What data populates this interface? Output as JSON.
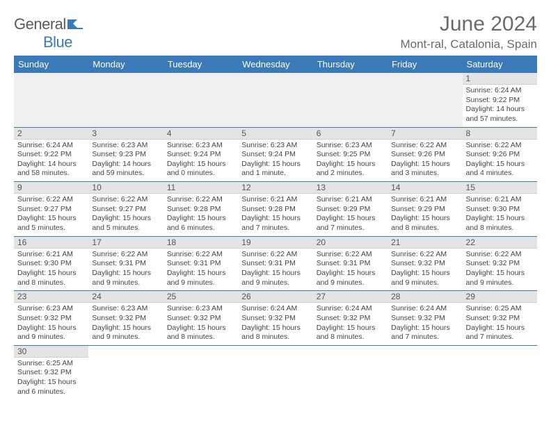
{
  "brand": {
    "part1": "General",
    "part2": "Blue"
  },
  "title": "June 2024",
  "location": "Mont-ral, Catalonia, Spain",
  "colors": {
    "header_bg": "#3a7ab8",
    "header_text": "#ffffff",
    "daynum_bg": "#e4e4e4",
    "row_border": "#3a7ab8",
    "body_text": "#444444",
    "title_text": "#6b6b6b"
  },
  "typography": {
    "month_title_size": 30,
    "location_size": 17,
    "weekday_size": 13,
    "daynum_size": 12,
    "body_size": 10.5
  },
  "weekdays": [
    "Sunday",
    "Monday",
    "Tuesday",
    "Wednesday",
    "Thursday",
    "Friday",
    "Saturday"
  ],
  "weeks": [
    [
      null,
      null,
      null,
      null,
      null,
      null,
      {
        "n": "1",
        "sr": "Sunrise: 6:24 AM",
        "ss": "Sunset: 9:22 PM",
        "dl": "Daylight: 14 hours and 57 minutes."
      }
    ],
    [
      {
        "n": "2",
        "sr": "Sunrise: 6:24 AM",
        "ss": "Sunset: 9:22 PM",
        "dl": "Daylight: 14 hours and 58 minutes."
      },
      {
        "n": "3",
        "sr": "Sunrise: 6:23 AM",
        "ss": "Sunset: 9:23 PM",
        "dl": "Daylight: 14 hours and 59 minutes."
      },
      {
        "n": "4",
        "sr": "Sunrise: 6:23 AM",
        "ss": "Sunset: 9:24 PM",
        "dl": "Daylight: 15 hours and 0 minutes."
      },
      {
        "n": "5",
        "sr": "Sunrise: 6:23 AM",
        "ss": "Sunset: 9:24 PM",
        "dl": "Daylight: 15 hours and 1 minute."
      },
      {
        "n": "6",
        "sr": "Sunrise: 6:23 AM",
        "ss": "Sunset: 9:25 PM",
        "dl": "Daylight: 15 hours and 2 minutes."
      },
      {
        "n": "7",
        "sr": "Sunrise: 6:22 AM",
        "ss": "Sunset: 9:26 PM",
        "dl": "Daylight: 15 hours and 3 minutes."
      },
      {
        "n": "8",
        "sr": "Sunrise: 6:22 AM",
        "ss": "Sunset: 9:26 PM",
        "dl": "Daylight: 15 hours and 4 minutes."
      }
    ],
    [
      {
        "n": "9",
        "sr": "Sunrise: 6:22 AM",
        "ss": "Sunset: 9:27 PM",
        "dl": "Daylight: 15 hours and 5 minutes."
      },
      {
        "n": "10",
        "sr": "Sunrise: 6:22 AM",
        "ss": "Sunset: 9:27 PM",
        "dl": "Daylight: 15 hours and 5 minutes."
      },
      {
        "n": "11",
        "sr": "Sunrise: 6:22 AM",
        "ss": "Sunset: 9:28 PM",
        "dl": "Daylight: 15 hours and 6 minutes."
      },
      {
        "n": "12",
        "sr": "Sunrise: 6:21 AM",
        "ss": "Sunset: 9:28 PM",
        "dl": "Daylight: 15 hours and 7 minutes."
      },
      {
        "n": "13",
        "sr": "Sunrise: 6:21 AM",
        "ss": "Sunset: 9:29 PM",
        "dl": "Daylight: 15 hours and 7 minutes."
      },
      {
        "n": "14",
        "sr": "Sunrise: 6:21 AM",
        "ss": "Sunset: 9:29 PM",
        "dl": "Daylight: 15 hours and 8 minutes."
      },
      {
        "n": "15",
        "sr": "Sunrise: 6:21 AM",
        "ss": "Sunset: 9:30 PM",
        "dl": "Daylight: 15 hours and 8 minutes."
      }
    ],
    [
      {
        "n": "16",
        "sr": "Sunrise: 6:21 AM",
        "ss": "Sunset: 9:30 PM",
        "dl": "Daylight: 15 hours and 8 minutes."
      },
      {
        "n": "17",
        "sr": "Sunrise: 6:22 AM",
        "ss": "Sunset: 9:31 PM",
        "dl": "Daylight: 15 hours and 9 minutes."
      },
      {
        "n": "18",
        "sr": "Sunrise: 6:22 AM",
        "ss": "Sunset: 9:31 PM",
        "dl": "Daylight: 15 hours and 9 minutes."
      },
      {
        "n": "19",
        "sr": "Sunrise: 6:22 AM",
        "ss": "Sunset: 9:31 PM",
        "dl": "Daylight: 15 hours and 9 minutes."
      },
      {
        "n": "20",
        "sr": "Sunrise: 6:22 AM",
        "ss": "Sunset: 9:31 PM",
        "dl": "Daylight: 15 hours and 9 minutes."
      },
      {
        "n": "21",
        "sr": "Sunrise: 6:22 AM",
        "ss": "Sunset: 9:32 PM",
        "dl": "Daylight: 15 hours and 9 minutes."
      },
      {
        "n": "22",
        "sr": "Sunrise: 6:22 AM",
        "ss": "Sunset: 9:32 PM",
        "dl": "Daylight: 15 hours and 9 minutes."
      }
    ],
    [
      {
        "n": "23",
        "sr": "Sunrise: 6:23 AM",
        "ss": "Sunset: 9:32 PM",
        "dl": "Daylight: 15 hours and 9 minutes."
      },
      {
        "n": "24",
        "sr": "Sunrise: 6:23 AM",
        "ss": "Sunset: 9:32 PM",
        "dl": "Daylight: 15 hours and 9 minutes."
      },
      {
        "n": "25",
        "sr": "Sunrise: 6:23 AM",
        "ss": "Sunset: 9:32 PM",
        "dl": "Daylight: 15 hours and 8 minutes."
      },
      {
        "n": "26",
        "sr": "Sunrise: 6:24 AM",
        "ss": "Sunset: 9:32 PM",
        "dl": "Daylight: 15 hours and 8 minutes."
      },
      {
        "n": "27",
        "sr": "Sunrise: 6:24 AM",
        "ss": "Sunset: 9:32 PM",
        "dl": "Daylight: 15 hours and 8 minutes."
      },
      {
        "n": "28",
        "sr": "Sunrise: 6:24 AM",
        "ss": "Sunset: 9:32 PM",
        "dl": "Daylight: 15 hours and 7 minutes."
      },
      {
        "n": "29",
        "sr": "Sunrise: 6:25 AM",
        "ss": "Sunset: 9:32 PM",
        "dl": "Daylight: 15 hours and 7 minutes."
      }
    ],
    [
      {
        "n": "30",
        "sr": "Sunrise: 6:25 AM",
        "ss": "Sunset: 9:32 PM",
        "dl": "Daylight: 15 hours and 6 minutes."
      },
      null,
      null,
      null,
      null,
      null,
      null
    ]
  ]
}
